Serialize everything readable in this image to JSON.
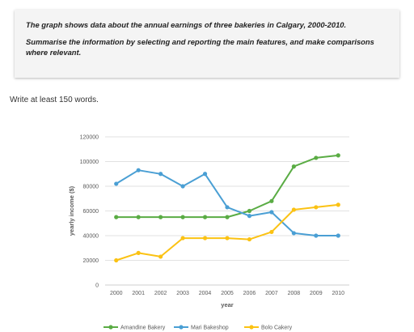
{
  "task": {
    "prompt": "The graph shows data about the annual earnings of three bakeries in Calgary, 2000-2010.",
    "instruction": "Summarise the information by selecting and reporting the main features, and make comparisons where relevant."
  },
  "word_limit": "Write at least 150 words.",
  "chart_data": {
    "type": "line",
    "title": "",
    "xlabel": "year",
    "ylabel": "yearly income ($)",
    "x": [
      "2000",
      "2001",
      "2002",
      "2003",
      "2004",
      "2005",
      "2006",
      "2007",
      "2008",
      "2009",
      "2010"
    ],
    "yticks": [
      "0",
      "20000",
      "40000",
      "60000",
      "80000",
      "100000",
      "120000"
    ],
    "ylim": [
      0,
      120000
    ],
    "grid": true,
    "legend_position": "bottom",
    "series": [
      {
        "name": "Amandine Bakery",
        "color": "#5aac44",
        "values": [
          55000,
          55000,
          55000,
          55000,
          55000,
          55000,
          60000,
          68000,
          96000,
          103000,
          105000
        ]
      },
      {
        "name": "Mari Bakeshop",
        "color": "#4a9fd4",
        "values": [
          82000,
          93000,
          90000,
          80000,
          90000,
          63000,
          56000,
          59000,
          42000,
          40000,
          40000
        ]
      },
      {
        "name": "Bolo Cakery",
        "color": "#fbc213",
        "values": [
          20000,
          26000,
          23000,
          38000,
          38000,
          38000,
          37000,
          43000,
          61000,
          63000,
          65000
        ]
      }
    ]
  }
}
